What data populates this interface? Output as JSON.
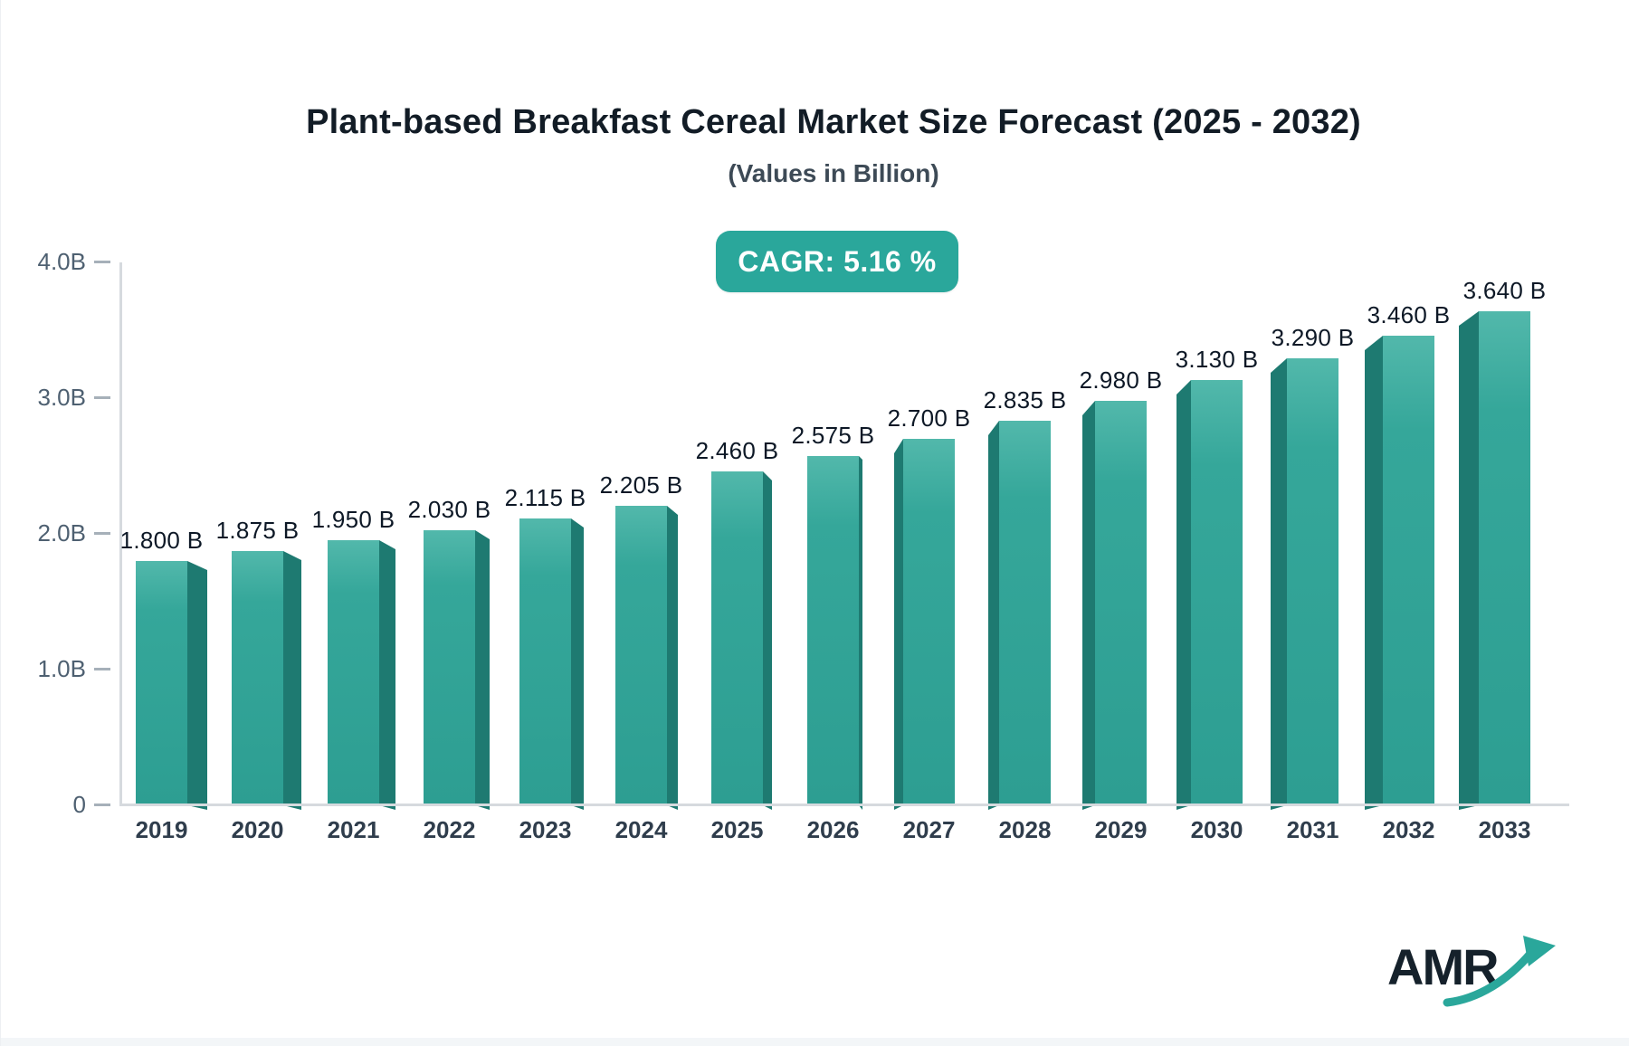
{
  "header": {
    "title": "Plant-based Breakfast Cereal Market Size Forecast (2025 - 2032)",
    "subtitle": "(Values in Billion)",
    "cagr_badge": "CAGR: 5.16 %"
  },
  "logo": {
    "text": "AMR"
  },
  "colors": {
    "bar_face": "#35a79a",
    "bar_face_light": "#52b8ab",
    "bar_side": "#1e7a71",
    "badge_bg": "#2aa79b",
    "axis_line": "#d6dade",
    "tick": "#a6b0b9",
    "y_label": "#4e6071",
    "x_label": "#2f3d4c",
    "value_label": "#0d1826",
    "title": "#121c26",
    "subtitle": "#3d4a56",
    "logo_text": "#15212b"
  },
  "chart_data": {
    "type": "bar",
    "title": "Plant-based Breakfast Cereal Market Size Forecast (2025 - 2032)",
    "subtitle": "(Values in Billion)",
    "annotation": "CAGR: 5.16 %",
    "categories": [
      "2019",
      "2020",
      "2021",
      "2022",
      "2023",
      "2024",
      "2025",
      "2026",
      "2027",
      "2028",
      "2029",
      "2030",
      "2031",
      "2032",
      "2033"
    ],
    "values": [
      1.8,
      1.875,
      1.95,
      2.03,
      2.115,
      2.205,
      2.46,
      2.575,
      2.7,
      2.835,
      2.98,
      3.13,
      3.29,
      3.46,
      3.64
    ],
    "value_labels": [
      "1.800 B",
      "1.875 B",
      "1.950 B",
      "2.030 B",
      "2.115 B",
      "2.205 B",
      "2.460 B",
      "2.575 B",
      "2.700 B",
      "2.835 B",
      "2.980 B",
      "3.130 B",
      "3.290 B",
      "3.460 B",
      "3.640 B"
    ],
    "unit": "Billion",
    "xlabel": "",
    "ylabel": "",
    "y_ticks": [
      "0",
      "1.0B",
      "2.0B",
      "3.0B",
      "4.0B"
    ],
    "ylim": [
      0,
      4.0
    ],
    "grid": false,
    "legend": false,
    "bar_style": "3d-perspective"
  }
}
